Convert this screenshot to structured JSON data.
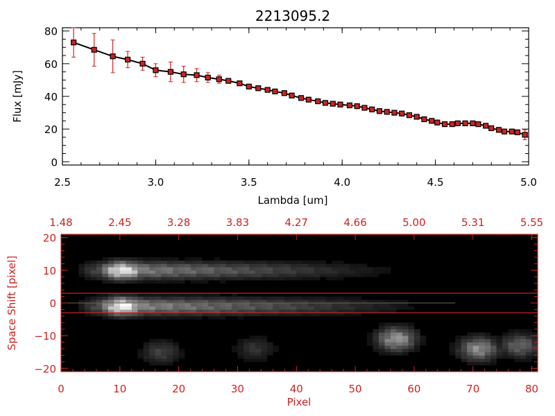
{
  "title": "2213095.2",
  "colors": {
    "accent_red": "#cc2222",
    "line": "#000000",
    "marker": "#cc2222",
    "background": "#ffffff"
  },
  "chart_data": [
    {
      "type": "line",
      "xlabel": "Lambda [um]",
      "ylabel": "Flux [mJy]",
      "xlim": [
        2.5,
        5.0
      ],
      "ylim": [
        -2,
        82
      ],
      "xticks": [
        2.5,
        3.0,
        3.5,
        4.0,
        4.5,
        5.0
      ],
      "xtick_labels": [
        "2.5",
        "3.0",
        "3.5",
        "4.0",
        "4.5",
        "5.0"
      ],
      "yticks": [
        0,
        20,
        40,
        60,
        80
      ],
      "ytick_labels": [
        "0",
        "20",
        "40",
        "60",
        "80"
      ],
      "series": [
        {
          "x": [
            2.56,
            2.67,
            2.77,
            2.85,
            2.93,
            3.0,
            3.08,
            3.15,
            3.22,
            3.28,
            3.34,
            3.39,
            3.45,
            3.5,
            3.55,
            3.6,
            3.64,
            3.69,
            3.73,
            3.78,
            3.82,
            3.87,
            3.91,
            3.95,
            3.99,
            4.04,
            4.08,
            4.12,
            4.16,
            4.2,
            4.24,
            4.28,
            4.32,
            4.36,
            4.4,
            4.44,
            4.48,
            4.51,
            4.55,
            4.59,
            4.62,
            4.66,
            4.7,
            4.73,
            4.77,
            4.8,
            4.84,
            4.87,
            4.91,
            4.94,
            4.98
          ],
          "y": [
            73,
            68.5,
            64.5,
            62.5,
            60,
            56,
            55,
            53.5,
            53,
            51.5,
            50.5,
            49.5,
            48,
            46,
            45,
            44,
            43,
            42,
            40.5,
            39,
            38,
            37,
            36,
            35.5,
            35,
            34.5,
            34,
            33,
            32,
            31,
            30.5,
            30,
            29.5,
            28.5,
            27.5,
            26,
            25,
            24,
            23,
            23,
            23.5,
            23.5,
            23.5,
            23,
            22,
            20.5,
            19.5,
            18.5,
            18.5,
            18,
            16.5
          ],
          "yerr": [
            9,
            10,
            10,
            5,
            4,
            4,
            6,
            5,
            4,
            3,
            2.5,
            1.5,
            1.5,
            1.5,
            1.5,
            1.5,
            1.5,
            1.5,
            1.5,
            1.5,
            1.5,
            1.5,
            1.5,
            1.5,
            1.5,
            1.5,
            1.5,
            1.5,
            1.5,
            1.5,
            1.5,
            1.5,
            1.5,
            1.5,
            1.5,
            1.5,
            1.5,
            1.5,
            1.5,
            1.5,
            1.5,
            1.5,
            1.5,
            1.5,
            1.5,
            1.5,
            1.5,
            1.5,
            1.5,
            1.5,
            3
          ]
        }
      ]
    },
    {
      "type": "heatmap",
      "xlabel": "Pixel",
      "ylabel": "Space Shift [pixel]",
      "xlim": [
        0,
        81
      ],
      "ylim": [
        -21,
        21
      ],
      "xticks": [
        0,
        10,
        20,
        30,
        40,
        50,
        60,
        70,
        80
      ],
      "xtick_labels": [
        "0",
        "10",
        "20",
        "30",
        "40",
        "50",
        "60",
        "70",
        "80"
      ],
      "yticks": [
        -20,
        -10,
        0,
        10,
        20
      ],
      "ytick_labels": [
        "−20",
        "−10",
        "0",
        "10",
        "20"
      ],
      "top_axis_labels": [
        "1.48",
        "2.45",
        "3.28",
        "3.83",
        "4.27",
        "4.66",
        "5.00",
        "5.31",
        "5.55"
      ],
      "extraction_window": [
        -3,
        3
      ],
      "traces": [
        {
          "center": 0,
          "peak_pixel": 10,
          "peak_intensity": 1.0,
          "extent_pixel": 67
        },
        {
          "center": 11,
          "peak_pixel": 10,
          "peak_intensity": 0.95,
          "extent_pixel": 62
        }
      ],
      "blobs": [
        {
          "pixel": 57,
          "shift": -10,
          "intensity": 0.6
        },
        {
          "pixel": 71,
          "shift": -13,
          "intensity": 0.55
        },
        {
          "pixel": 78,
          "shift": -12,
          "intensity": 0.4
        },
        {
          "pixel": 17,
          "shift": -14,
          "intensity": 0.25
        },
        {
          "pixel": 33,
          "shift": -13,
          "intensity": 0.2
        }
      ]
    }
  ]
}
